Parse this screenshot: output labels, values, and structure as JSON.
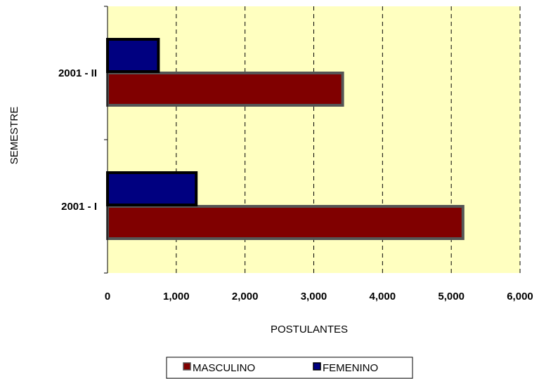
{
  "chart_data": {
    "type": "bar",
    "orientation": "horizontal",
    "title": "",
    "xlabel": "POSTULANTES",
    "ylabel": "SEMESTRE",
    "categories": [
      "2001 - I",
      "2001 - II"
    ],
    "series": [
      {
        "name": "MASCULINO",
        "values": [
          5170,
          3420
        ],
        "color": "#800000"
      },
      {
        "name": "FEMENINO",
        "values": [
          1290,
          740
        ],
        "color": "#000080"
      }
    ],
    "xlim": [
      0,
      6000
    ],
    "xticks": [
      0,
      1000,
      2000,
      3000,
      4000,
      5000,
      6000
    ],
    "xtick_labels": [
      "0",
      "1,000",
      "2,000",
      "3,000",
      "4,000",
      "5,000",
      "6,000"
    ],
    "grid": "vertical dashed",
    "plot_background": "#ffffc0",
    "legend_position": "bottom"
  }
}
